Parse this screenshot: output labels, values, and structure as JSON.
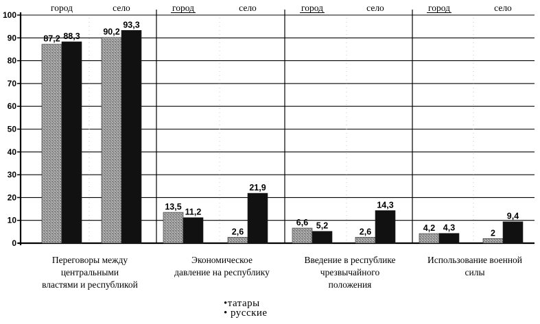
{
  "chart_data": {
    "type": "bar",
    "ylim": [
      0,
      100
    ],
    "y_ticks": [
      0,
      10,
      20,
      30,
      40,
      50,
      60,
      70,
      80,
      90,
      100
    ],
    "grid": true,
    "groups": [
      {
        "lines": [
          "Переговоры между",
          "центральными",
          "властями и республикой"
        ],
        "subs": [
          {
            "label": "город",
            "underline": false,
            "values": [
              87.2,
              88.3
            ],
            "labels": [
              "87,2",
              "88,3"
            ]
          },
          {
            "label": "село",
            "underline": false,
            "values": [
              90.2,
              93.3
            ],
            "labels": [
              "90,2",
              "93,3"
            ]
          }
        ]
      },
      {
        "lines": [
          "Экономическое",
          "давление на республику"
        ],
        "subs": [
          {
            "label": "город",
            "underline": true,
            "values": [
              13.5,
              11.2
            ],
            "labels": [
              "13,5",
              "11,2"
            ]
          },
          {
            "label": "село",
            "underline": false,
            "values": [
              2.6,
              21.9
            ],
            "labels": [
              "2,6",
              "21,9"
            ]
          }
        ]
      },
      {
        "lines": [
          "Введение в республике",
          "чрезвычайного",
          "положения"
        ],
        "subs": [
          {
            "label": "город",
            "underline": true,
            "values": [
              6.6,
              5.2
            ],
            "labels": [
              "6,6",
              "5,2"
            ]
          },
          {
            "label": "село",
            "underline": false,
            "values": [
              2.6,
              14.3
            ],
            "labels": [
              "2,6",
              "14,3"
            ]
          }
        ]
      },
      {
        "lines": [
          "Использование военной",
          "силы"
        ],
        "subs": [
          {
            "label": "город",
            "underline": true,
            "values": [
              4.2,
              4.3
            ],
            "labels": [
              "4,2",
              "4,3"
            ]
          },
          {
            "label": "село",
            "underline": false,
            "values": [
              2,
              9.4
            ],
            "labels": [
              "2",
              "9,4"
            ]
          }
        ]
      }
    ],
    "series": [
      {
        "name": "татары",
        "marker": "•",
        "color": "#8a8a8a"
      },
      {
        "name": "русские",
        "marker": "•",
        "color": "#111111"
      }
    ],
    "legend_position": "bottom-center"
  }
}
